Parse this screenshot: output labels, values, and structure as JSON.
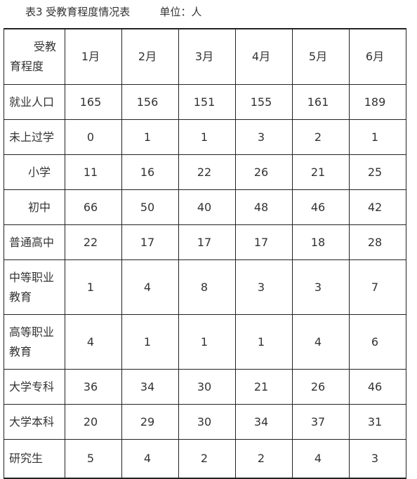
{
  "caption": {
    "title": "表3  受教育程度情况表",
    "unit": "单位：人"
  },
  "table": {
    "corner_top": "受教",
    "corner_bottom": "育程度",
    "months": [
      "1月",
      "2月",
      "3月",
      "4月",
      "5月",
      "6月"
    ],
    "rows": [
      {
        "label": "就业人口",
        "values": [
          "165",
          "156",
          "151",
          "155",
          "161",
          "189"
        ]
      },
      {
        "label": "未上过学",
        "values": [
          "0",
          "1",
          "1",
          "3",
          "2",
          "1"
        ]
      },
      {
        "label": "小学",
        "values": [
          "11",
          "16",
          "22",
          "26",
          "21",
          "25"
        ]
      },
      {
        "label": "初中",
        "values": [
          "66",
          "50",
          "40",
          "48",
          "46",
          "42"
        ]
      },
      {
        "label": "普通高中",
        "values": [
          "22",
          "17",
          "17",
          "17",
          "18",
          "28"
        ]
      },
      {
        "label": "中等职业教育",
        "values": [
          "1",
          "4",
          "8",
          "3",
          "3",
          "7"
        ]
      },
      {
        "label": "高等职业教育",
        "values": [
          "4",
          "1",
          "1",
          "1",
          "4",
          "6"
        ]
      },
      {
        "label": "大学专科",
        "values": [
          "36",
          "34",
          "30",
          "21",
          "26",
          "46"
        ]
      },
      {
        "label": "大学本科",
        "values": [
          "20",
          "29",
          "30",
          "34",
          "37",
          "31"
        ]
      },
      {
        "label": "研究生",
        "values": [
          "5",
          "4",
          "2",
          "2",
          "4",
          "3"
        ]
      }
    ]
  }
}
